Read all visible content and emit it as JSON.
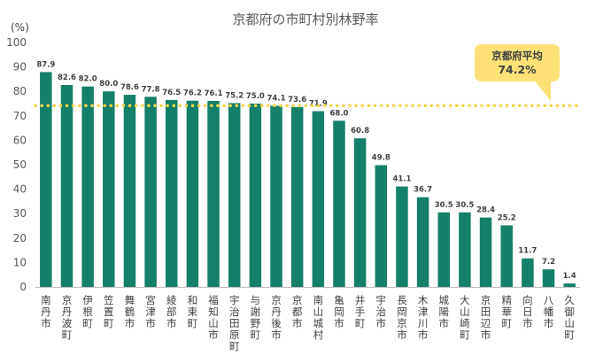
{
  "chart_data": {
    "type": "bar",
    "title": "京都府の市町村別林野率",
    "ylabel": "(%)",
    "ylim": [
      0,
      100
    ],
    "yticks": [
      0,
      10,
      20,
      30,
      40,
      50,
      60,
      70,
      80,
      90,
      100
    ],
    "grid": false,
    "categories": [
      "南丹市",
      "京丹波町",
      "伊根町",
      "笠置町",
      "舞鶴市",
      "宮津市",
      "綾部市",
      "和束町",
      "福知山市",
      "宇治田原町",
      "与謝野町",
      "京丹後市",
      "京都市",
      "南山城村",
      "亀岡市",
      "井手町",
      "宇治市",
      "長岡京市",
      "木津川市",
      "城陽市",
      "大山崎町",
      "京田辺市",
      "精華町",
      "向日市",
      "八幡市",
      "久御山町"
    ],
    "values": [
      87.9,
      82.6,
      82.0,
      80.0,
      78.6,
      77.8,
      76.5,
      76.2,
      76.1,
      75.2,
      75.0,
      74.1,
      73.6,
      71.9,
      68.0,
      60.8,
      49.8,
      41.1,
      36.7,
      30.5,
      30.5,
      28.4,
      25.2,
      11.7,
      7.2,
      1.4
    ],
    "value_labels": [
      "87.9",
      "82.6",
      "82.0",
      "80.0",
      "78.6",
      "77.8",
      "76.5",
      "76.2",
      "76.1",
      "75.2",
      "75.0",
      "74.1",
      "73.6",
      "71.9",
      "68.0",
      "60.8",
      "49.8",
      "41.1",
      "36.7",
      "30.5",
      "30.5",
      "28.4",
      "25.2",
      "11.7",
      "7.2",
      "1.4"
    ],
    "reference_line": {
      "value": 74.2,
      "label": "京都府平均",
      "value_label": "74.2%"
    }
  },
  "colors": {
    "bar": "#15806a",
    "reference_line": "#f5d547",
    "callout_fill": "#fde177",
    "axis": "#bfbfbf"
  }
}
